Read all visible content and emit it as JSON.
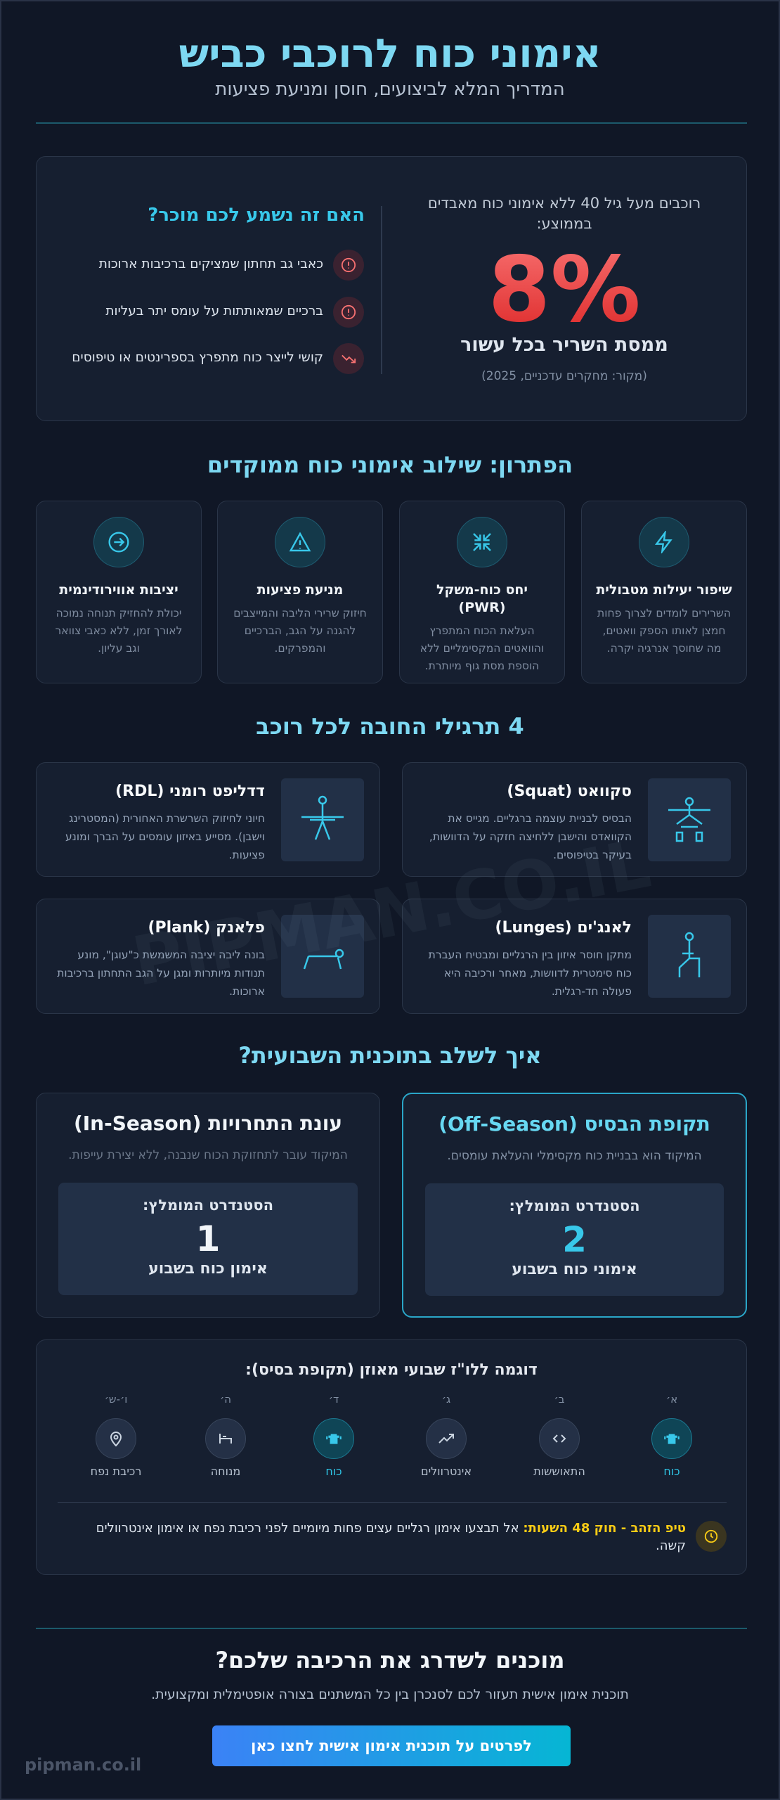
{
  "header": {
    "title": "אימוני כוח לרוכבי כביש",
    "subtitle": "המדריך המלא לביצועים, חוסן ומניעת פציעות"
  },
  "problem": {
    "stat_intro": "רוכבים מעל גיל 40 ללא אימוני כוח מאבדים בממוצע:",
    "stat": "8%",
    "stat_label": "ממסת השריר בכל עשור",
    "source": "(מקור: מחקרים עדכניים, 2025)",
    "question": "האם זה נשמע לכם מוכר?",
    "symptoms": [
      "כאבי גב תחתון שמציקים ברכיבות ארוכות",
      "ברכיים שמאותתות על עומס יתר בעליות",
      "קושי לייצר כוח מתפרץ בספרינטים או טיפוסים"
    ]
  },
  "solution": {
    "title": "הפתרון: שילוב אימוני כוח ממוקדים",
    "cards": [
      {
        "title": "שיפור יעילות מטבולית",
        "text": "השרירים לומדים לצרוך פחות חמצן לאותו הספק וואטים, מה שחוסך אנרגיה יקרה."
      },
      {
        "title": "יחס כוח-משקל (PWR)",
        "text": "העלאת הכוח המתפרץ והוואטים המקסימליים ללא הוספת מסת גוף מיותרת."
      },
      {
        "title": "מניעת פציעות",
        "text": "חיזוק שרירי הליבה והמייצבים להגנה על הגב, הברכיים והמפרקים."
      },
      {
        "title": "יציבות אווירודינמית",
        "text": "יכולת להחזיק תנוחה נמוכה לאורך זמן, ללא כאבי צוואר וגב עליון."
      }
    ]
  },
  "exercises": {
    "title": "4 תרגילי החובה לכל רוכב",
    "items": [
      {
        "name": "סקוואט (Squat)",
        "text": "הבסיס לבניית עוצמה ברגליים. מגייס את הקוואדס והישבן ללחיצה חזקה על הדוושות, בעיקר בטיפוסים."
      },
      {
        "name": "דדליפט רומני (RDL)",
        "text": "חיוני לחיזוק השרשרת האחורית (המסטרינג וישבן). מסייע באיזון עומסים על הברך ומונע פציעות."
      },
      {
        "name": "לאנג'ים (Lunges)",
        "text": "מתקן חוסר איזון בין הרגליים ומבטיח העברת כוח סימטרית לדוושות, מאחר ורכיבה היא פעולה חד-רגלית."
      },
      {
        "name": "פלאנק (Plank)",
        "text": "בונה ליבה יציבה המשמשת כ\"עוגן\", מונע תנודות מיותרות ומגן על הגב התחתון ברכיבות ארוכות."
      }
    ]
  },
  "plan": {
    "title": "איך לשלב בתוכנית השבועית?",
    "seasons": [
      {
        "title": "תקופת הבסיס (Off-Season)",
        "focus": "המיקוד הוא בבניית כוח מקסימלי והעלאת עומסים.",
        "standard_label": "הסטנדרט המומלץ:",
        "count": 2,
        "unit": "אימוני כוח בשבוע"
      },
      {
        "title": "עונת התחרויות (In-Season)",
        "focus": "המיקוד עובר לתחזוקת הכוח שנבנה, ללא יצירת עייפות.",
        "standard_label": "הסטנדרט המומלץ:",
        "count": 1,
        "unit": "אימון כוח בשבוע"
      }
    ]
  },
  "week": {
    "title": "דוגמה ללו\"ז שבועי מאוזן (תקופת בסיס):",
    "days": [
      {
        "day": "א׳",
        "activity": "כוח"
      },
      {
        "day": "ב׳",
        "activity": "התאוששות"
      },
      {
        "day": "ג׳",
        "activity": "אינטרוולים"
      },
      {
        "day": "ד׳",
        "activity": "כוח"
      },
      {
        "day": "ה׳",
        "activity": "מנוחה"
      },
      {
        "day": "ו׳-ש׳",
        "activity": "רכיבת נפח"
      }
    ],
    "tip_label": "טיפ הזהב - חוק 48 השעות:",
    "tip_text": "אל תבצעו אימון רגליים עצים פחות מיומיים לפני רכיבת נפח או אימון אינטרוולים קשה."
  },
  "cta": {
    "title": "מוכנים לשדרג את הרכיבה שלכם?",
    "text": "תוכנית אימון אישית תעזור לכם לסנכרן בין כל המשתנים בצורה אופטימלית ומקצועית.",
    "button": "לפרטים על תוכנית אימון אישית לחצו כאן"
  },
  "footer": {
    "brand": "pipman.co.il"
  },
  "watermark": "PIPMAN.CO.IL"
}
